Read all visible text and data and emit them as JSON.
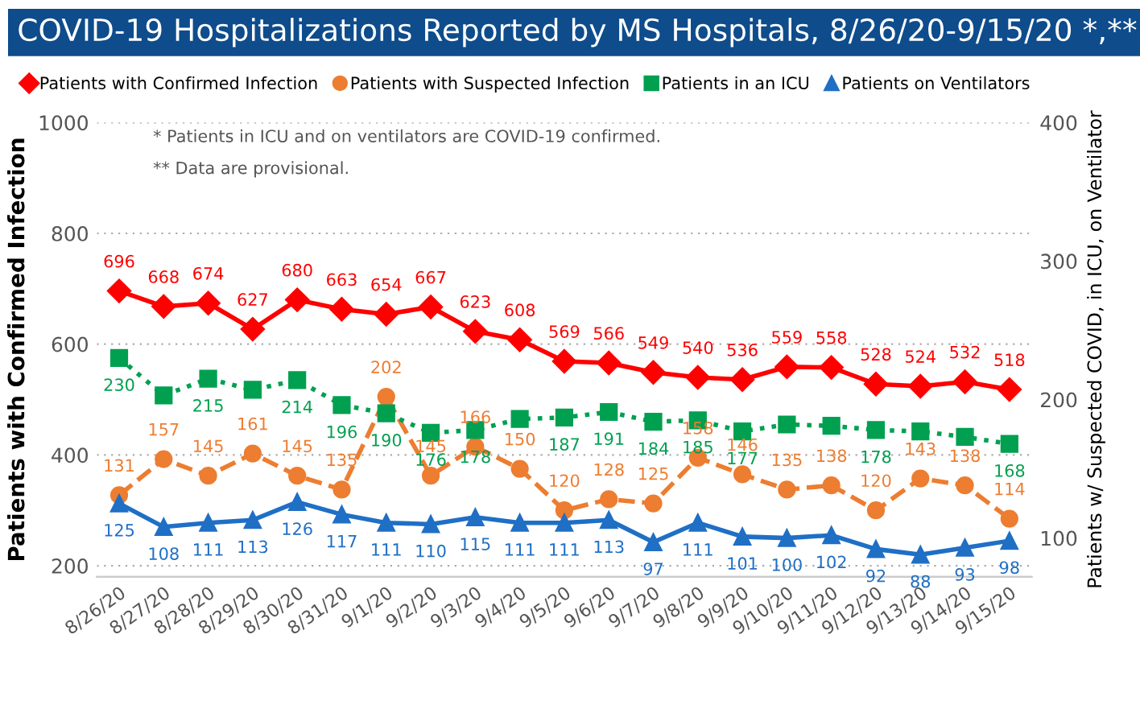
{
  "chart_data": {
    "type": "line",
    "title": "COVID-19 Hospitalizations Reported by MS Hospitals, 8/26/20-9/15/20 *,**",
    "ylabel": "Patients with Confirmed Infection",
    "y2label": "Patients w/ Suspected COVID, in ICU, on Ventilator",
    "annotations": [
      "* Patients in ICU and on ventilators are COVID-19 confirmed.",
      "** Data are provisional."
    ],
    "categories": [
      "8/26/20",
      "8/27/20",
      "8/28/20",
      "8/29/20",
      "8/30/20",
      "8/31/20",
      "9/1/20",
      "9/2/20",
      "9/3/20",
      "9/4/20",
      "9/5/20",
      "9/6/20",
      "9/7/20",
      "9/8/20",
      "9/9/20",
      "9/10/20",
      "9/11/20",
      "9/12/20",
      "9/13/20",
      "9/14/20",
      "9/15/20"
    ],
    "series": [
      {
        "name": "Patients with Confirmed Infection",
        "color": "#ff0000",
        "marker": "diamond",
        "line_style": "solid",
        "values": [
          696,
          668,
          674,
          627,
          680,
          663,
          654,
          667,
          623,
          608,
          569,
          566,
          549,
          540,
          536,
          559,
          558,
          528,
          524,
          532,
          518
        ]
      },
      {
        "name": "Patients with Suspected Infection",
        "color": "#ed7d31",
        "marker": "circle",
        "line_style": "dashed",
        "axis": "y2",
        "values": [
          131,
          157,
          145,
          161,
          145,
          135,
          202,
          145,
          166,
          150,
          120,
          128,
          125,
          158,
          146,
          135,
          138,
          120,
          143,
          138,
          114
        ]
      },
      {
        "name": "Patients in an ICU",
        "color": "#00a050",
        "marker": "square",
        "line_style": "dotted",
        "axis": "y2",
        "values": [
          230,
          203,
          215,
          207,
          214,
          196,
          190,
          176,
          178,
          186,
          187,
          191,
          184,
          185,
          177,
          182,
          181,
          178,
          177,
          173,
          168
        ],
        "value_labels": [
          "230",
          null,
          "215",
          null,
          "214",
          "196",
          "190",
          "176",
          "178",
          null,
          "187",
          "191",
          "184",
          "185",
          "177",
          null,
          null,
          "178",
          null,
          null,
          "168"
        ]
      },
      {
        "name": "Patients on Ventilators",
        "color": "#1f6fc5",
        "marker": "triangle",
        "line_style": "solid",
        "axis": "y2",
        "values": [
          125,
          108,
          111,
          113,
          126,
          117,
          111,
          110,
          115,
          111,
          111,
          113,
          97,
          111,
          101,
          100,
          102,
          92,
          88,
          93,
          98
        ]
      }
    ],
    "ylim": [
      180,
      1000
    ],
    "yticks": [
      200,
      400,
      600,
      800,
      1000
    ],
    "y2lim": [
      72,
      400
    ],
    "y2ticks": [
      100,
      200,
      300,
      400
    ],
    "grid": "y",
    "legend": "top left",
    "data_labels": true
  }
}
